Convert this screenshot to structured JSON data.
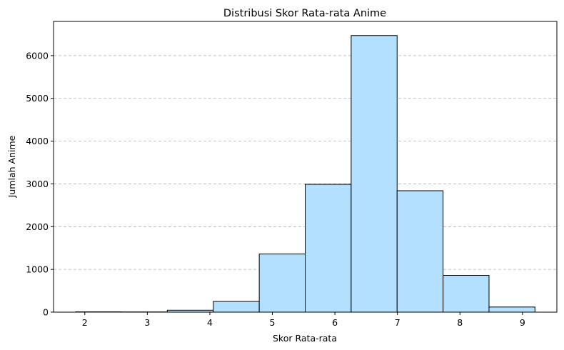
{
  "chart_data": {
    "type": "bar",
    "title": "Distribusi Skor Rata-rata Anime",
    "xlabel": "Skor Rata-rata",
    "ylabel": "Jumlah Anime",
    "bin_edges": [
      1.85,
      2.585,
      3.32,
      4.055,
      4.79,
      5.525,
      6.26,
      6.995,
      7.73,
      8.465,
      9.2
    ],
    "values": [
      7,
      5,
      45,
      250,
      1360,
      2990,
      6470,
      2840,
      860,
      120
    ],
    "xlim": [
      1.5,
      9.55
    ],
    "ylim": [
      0,
      6800
    ],
    "xticks": [
      2,
      3,
      4,
      5,
      6,
      7,
      8,
      9
    ],
    "yticks": [
      0,
      1000,
      2000,
      3000,
      4000,
      5000,
      6000
    ],
    "grid": "y",
    "bar_color": "#b3e0ff",
    "edge_color": "#000000"
  }
}
